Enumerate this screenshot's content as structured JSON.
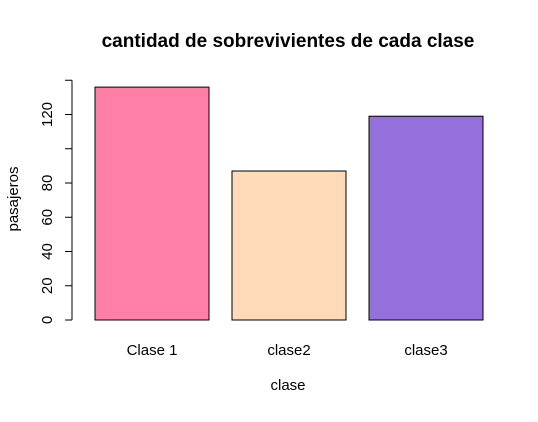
{
  "chart_data": {
    "type": "bar",
    "title": "cantidad de sobrevivientes de cada clase",
    "xlabel": "clase",
    "ylabel": "pasajeros",
    "categories": [
      "Clase 1",
      "clase2",
      "clase3"
    ],
    "values": [
      136,
      87,
      119
    ],
    "colors": [
      "#ff7fa6",
      "#ffdab9",
      "#9370db"
    ],
    "ylim": [
      0,
      140
    ],
    "yticks": [
      0,
      20,
      40,
      60,
      80,
      120
    ],
    "ytick_labels": [
      "0",
      "20",
      "40",
      "60",
      "80",
      "120"
    ],
    "grid": false,
    "legend": "none"
  }
}
